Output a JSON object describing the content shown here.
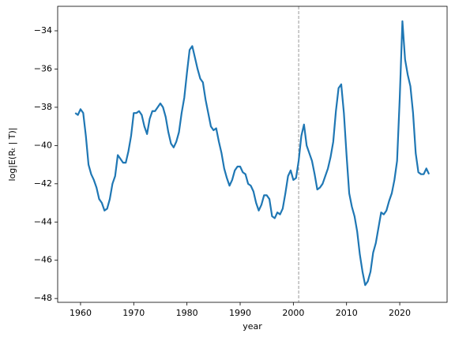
{
  "chart_data": {
    "type": "line",
    "x_label": "year",
    "y_label": "log|E(Rₜ | T)|",
    "x": [
      1959,
      1959.5,
      1960,
      1960.5,
      1961,
      1961.5,
      1962,
      1962.5,
      1963,
      1963.5,
      1964,
      1964.5,
      1965,
      1965.5,
      1966,
      1966.5,
      1967,
      1967.5,
      1968,
      1968.5,
      1969,
      1969.5,
      1970,
      1970.5,
      1971,
      1971.5,
      1972,
      1972.5,
      1973,
      1973.5,
      1974,
      1974.5,
      1975,
      1975.5,
      1976,
      1976.5,
      1977,
      1977.5,
      1978,
      1978.5,
      1979,
      1979.5,
      1980,
      1980.5,
      1981,
      1981.5,
      1982,
      1982.5,
      1983,
      1983.5,
      1984,
      1984.5,
      1985,
      1985.5,
      1986,
      1986.5,
      1987,
      1987.5,
      1988,
      1988.5,
      1989,
      1989.5,
      1990,
      1990.5,
      1991,
      1991.5,
      1992,
      1992.5,
      1993,
      1993.5,
      1994,
      1994.5,
      1995,
      1995.5,
      1996,
      1996.5,
      1997,
      1997.5,
      1998,
      1998.5,
      1999,
      1999.5,
      2000,
      2000.5,
      2001,
      2001.5,
      2002,
      2002.5,
      2003,
      2003.5,
      2004,
      2004.5,
      2005,
      2005.5,
      2006,
      2006.5,
      2007,
      2007.5,
      2008,
      2008.5,
      2009,
      2009.5,
      2010,
      2010.5,
      2011,
      2011.5,
      2012,
      2012.5,
      2013,
      2013.5,
      2014,
      2014.5,
      2015,
      2015.5,
      2016,
      2016.5,
      2017,
      2017.5,
      2018,
      2018.5,
      2019,
      2019.5,
      2020,
      2020.5,
      2021,
      2021.5,
      2022,
      2022.5,
      2023,
      2023.5,
      2024,
      2024.5,
      2025,
      2025.5
    ],
    "series": [
      {
        "color": "#1f77b4",
        "values": [
          -38.3,
          -38.4,
          -38.1,
          -38.3,
          -39.5,
          -41.0,
          -41.5,
          -41.8,
          -42.2,
          -42.8,
          -43.0,
          -43.4,
          -43.3,
          -42.8,
          -42.0,
          -41.6,
          -40.5,
          -40.7,
          -40.9,
          -40.9,
          -40.3,
          -39.5,
          -38.3,
          -38.3,
          -38.2,
          -38.4,
          -39.0,
          -39.4,
          -38.6,
          -38.2,
          -38.2,
          -38.0,
          -37.8,
          -38.0,
          -38.5,
          -39.3,
          -39.9,
          -40.1,
          -39.8,
          -39.3,
          -38.3,
          -37.5,
          -36.2,
          -35.0,
          -34.8,
          -35.4,
          -36.0,
          -36.5,
          -36.7,
          -37.6,
          -38.3,
          -39.0,
          -39.2,
          -39.1,
          -39.8,
          -40.4,
          -41.2,
          -41.7,
          -42.1,
          -41.8,
          -41.3,
          -41.1,
          -41.1,
          -41.4,
          -41.5,
          -42.0,
          -42.1,
          -42.4,
          -43.0,
          -43.4,
          -43.1,
          -42.6,
          -42.6,
          -42.8,
          -43.7,
          -43.8,
          -43.5,
          -43.6,
          -43.3,
          -42.5,
          -41.6,
          -41.3,
          -41.8,
          -41.7,
          -40.8,
          -39.5,
          -38.9,
          -40.0,
          -40.4,
          -40.8,
          -41.5,
          -42.3,
          -42.2,
          -42.0,
          -41.6,
          -41.2,
          -40.6,
          -39.8,
          -38.2,
          -37.0,
          -36.8,
          -38.3,
          -40.5,
          -42.5,
          -43.2,
          -43.7,
          -44.5,
          -45.7,
          -46.6,
          -47.3,
          -47.1,
          -46.6,
          -45.6,
          -45.1,
          -44.3,
          -43.5,
          -43.6,
          -43.4,
          -42.9,
          -42.5,
          -41.8,
          -40.8,
          -37.5,
          -33.5,
          -35.5,
          -36.3,
          -36.9,
          -38.3,
          -40.4,
          -41.4,
          -41.5,
          -41.5,
          -41.2,
          -41.5
        ]
      }
    ],
    "vline": 2001,
    "xlim": [
      1955.7,
      2028.9
    ],
    "ylim": [
      -48.2,
      -32.72
    ],
    "xticks": [
      1960,
      1970,
      1980,
      1990,
      2000,
      2010,
      2020
    ],
    "yticks": [
      {
        "value": -48,
        "label": "−48"
      },
      {
        "value": -46,
        "label": "−46"
      },
      {
        "value": -44,
        "label": "−44"
      },
      {
        "value": -42,
        "label": "−42"
      },
      {
        "value": -40,
        "label": "−40"
      },
      {
        "value": -38,
        "label": "−38"
      },
      {
        "value": -36,
        "label": "−36"
      },
      {
        "value": -34,
        "label": "−34"
      }
    ]
  }
}
